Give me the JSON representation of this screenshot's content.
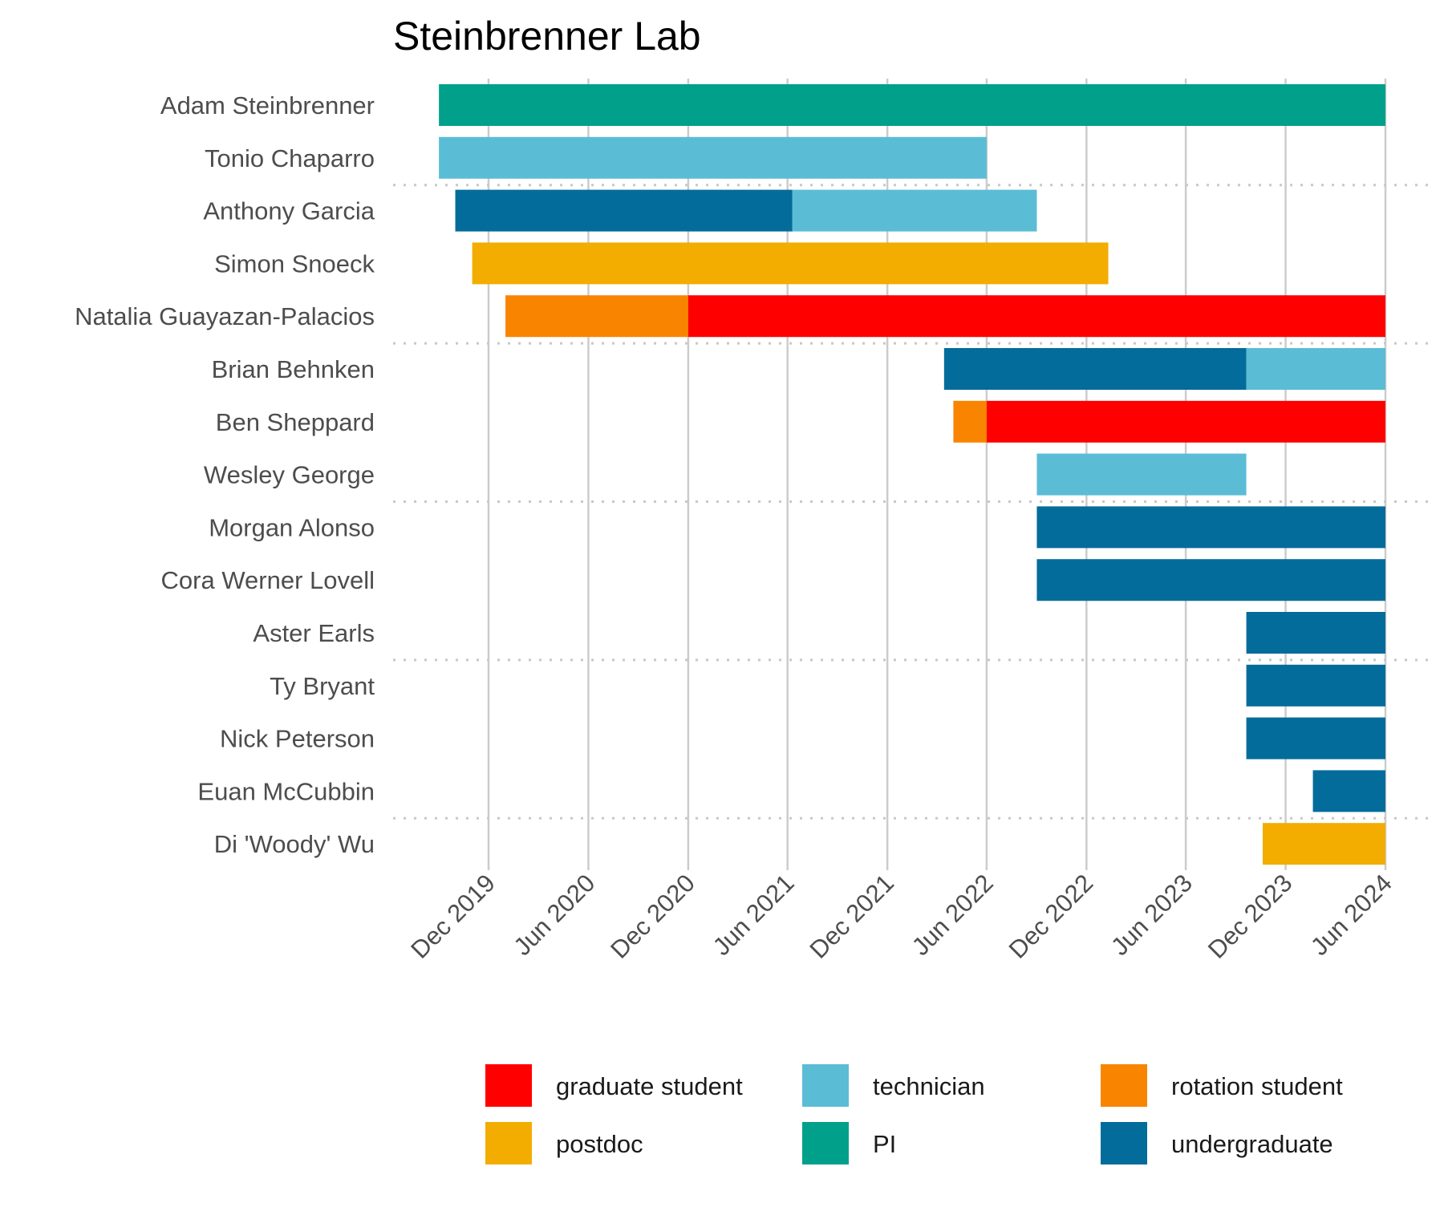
{
  "chart_data": {
    "type": "gantt",
    "title": "Steinbrenner Lab",
    "xlabel": "",
    "ylabel": "",
    "x_range": [
      "2019-07-01",
      "2024-06-01"
    ],
    "x_ticks": [
      {
        "date": "2019-12-01",
        "label": "Dec 2019"
      },
      {
        "date": "2020-06-01",
        "label": "Jun 2020"
      },
      {
        "date": "2020-12-01",
        "label": "Dec 2020"
      },
      {
        "date": "2021-06-01",
        "label": "Jun 2021"
      },
      {
        "date": "2021-12-01",
        "label": "Dec 2021"
      },
      {
        "date": "2022-06-01",
        "label": "Jun 2022"
      },
      {
        "date": "2022-12-01",
        "label": "Dec 2022"
      },
      {
        "date": "2023-06-01",
        "label": "Jun 2023"
      },
      {
        "date": "2023-12-01",
        "label": "Dec 2023"
      },
      {
        "date": "2024-06-01",
        "label": "Jun 2024"
      }
    ],
    "grid": true,
    "legend_position": "bottom",
    "categories": [
      {
        "role": "graduate student",
        "color": "#FF0000"
      },
      {
        "role": "postdoc",
        "color": "#F2AD00"
      },
      {
        "role": "technician",
        "color": "#5BBCD6"
      },
      {
        "role": "PI",
        "color": "#00A08A"
      },
      {
        "role": "rotation student",
        "color": "#F98400"
      },
      {
        "role": "undergraduate",
        "color": "#046C9A"
      }
    ],
    "people": [
      {
        "name": "Adam Steinbrenner",
        "segments": [
          {
            "role": "PI",
            "start": "2019-09-01",
            "end": "2024-06-01"
          }
        ]
      },
      {
        "name": "Tonio Chaparro",
        "segments": [
          {
            "role": "technician",
            "start": "2019-09-01",
            "end": "2022-06-01"
          }
        ]
      },
      {
        "name": "Anthony Garcia",
        "segments": [
          {
            "role": "undergraduate",
            "start": "2019-10-01",
            "end": "2021-06-10"
          },
          {
            "role": "technician",
            "start": "2021-06-10",
            "end": "2022-09-01"
          }
        ]
      },
      {
        "name": "Simon Snoeck",
        "segments": [
          {
            "role": "postdoc",
            "start": "2019-11-01",
            "end": "2023-01-10"
          }
        ]
      },
      {
        "name": "Natalia Guayazan-Palacios",
        "segments": [
          {
            "role": "rotation student",
            "start": "2020-01-01",
            "end": "2020-12-01"
          },
          {
            "role": "graduate student",
            "start": "2020-12-01",
            "end": "2024-06-01"
          }
        ]
      },
      {
        "name": "Brian Behnken",
        "segments": [
          {
            "role": "undergraduate",
            "start": "2022-03-15",
            "end": "2023-09-20"
          },
          {
            "role": "technician",
            "start": "2023-09-20",
            "end": "2024-06-01"
          }
        ]
      },
      {
        "name": "Ben Sheppard",
        "segments": [
          {
            "role": "rotation student",
            "start": "2022-04-01",
            "end": "2022-06-01"
          },
          {
            "role": "graduate student",
            "start": "2022-06-01",
            "end": "2024-06-01"
          }
        ]
      },
      {
        "name": "Wesley George",
        "segments": [
          {
            "role": "technician",
            "start": "2022-09-01",
            "end": "2023-09-20"
          }
        ]
      },
      {
        "name": "Morgan Alonso",
        "segments": [
          {
            "role": "undergraduate",
            "start": "2022-09-01",
            "end": "2024-06-01"
          }
        ]
      },
      {
        "name": "Cora Werner Lovell",
        "segments": [
          {
            "role": "undergraduate",
            "start": "2022-09-01",
            "end": "2024-06-01"
          }
        ]
      },
      {
        "name": "Aster Earls",
        "segments": [
          {
            "role": "undergraduate",
            "start": "2023-09-20",
            "end": "2024-06-01"
          }
        ]
      },
      {
        "name": "Ty Bryant",
        "segments": [
          {
            "role": "undergraduate",
            "start": "2023-09-20",
            "end": "2024-06-01"
          }
        ]
      },
      {
        "name": "Nick Peterson",
        "segments": [
          {
            "role": "undergraduate",
            "start": "2023-09-20",
            "end": "2024-06-01"
          }
        ]
      },
      {
        "name": "Euan McCubbin",
        "segments": [
          {
            "role": "undergraduate",
            "start": "2024-01-20",
            "end": "2024-06-01"
          }
        ]
      },
      {
        "name": "Di 'Woody' Wu",
        "segments": [
          {
            "role": "postdoc",
            "start": "2023-10-20",
            "end": "2024-06-01"
          }
        ]
      }
    ]
  }
}
